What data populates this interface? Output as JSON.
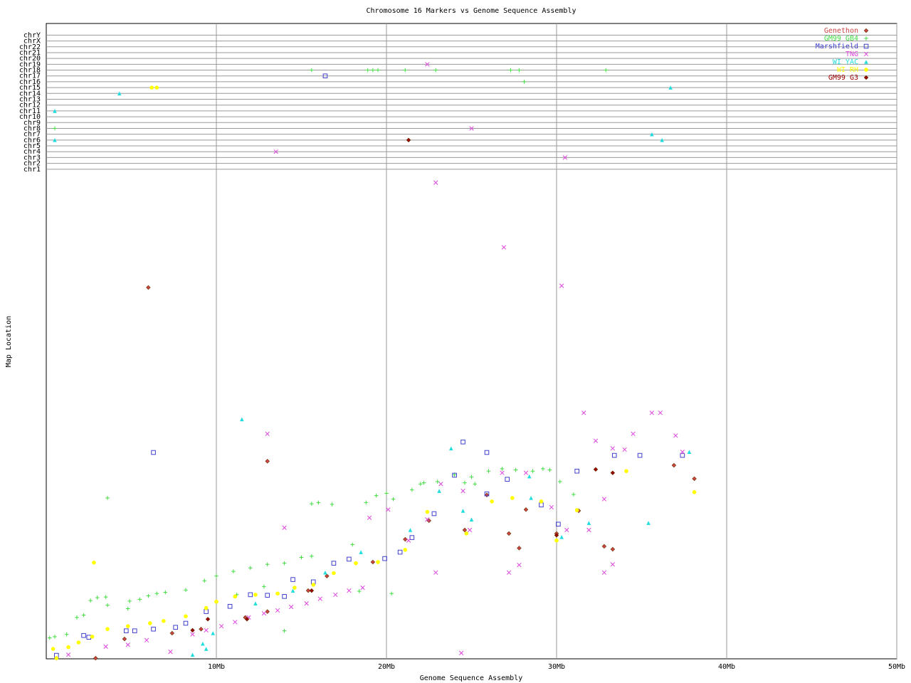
{
  "chart_data": {
    "type": "scatter",
    "title": "Chromosome 16 Markers vs Genome Sequence Assembly",
    "x_label": "Genome Sequence Assembly",
    "y_label": "Map Location",
    "xlim": [
      0,
      50
    ],
    "xticks": [
      {
        "value": 10,
        "label": "10Mb"
      },
      {
        "value": 20,
        "label": "20Mb"
      },
      {
        "value": 30,
        "label": "30Mb"
      },
      {
        "value": 40,
        "label": "40Mb"
      },
      {
        "value": 50,
        "label": "50Mb"
      }
    ],
    "ylim": [
      0,
      109
    ],
    "yticks": [
      {
        "value": 84,
        "label": "chr1"
      },
      {
        "value": 85,
        "label": "chr2"
      },
      {
        "value": 86,
        "label": "chr3"
      },
      {
        "value": 87,
        "label": "chr4"
      },
      {
        "value": 88,
        "label": "chr5"
      },
      {
        "value": 89,
        "label": "chr6"
      },
      {
        "value": 90,
        "label": "chr7"
      },
      {
        "value": 91,
        "label": "chr8"
      },
      {
        "value": 92,
        "label": "chr9"
      },
      {
        "value": 93,
        "label": "chr10"
      },
      {
        "value": 94,
        "label": "chr11"
      },
      {
        "value": 95,
        "label": "chr12"
      },
      {
        "value": 96,
        "label": "chr13"
      },
      {
        "value": 97,
        "label": "chr14"
      },
      {
        "value": 98,
        "label": "chr15"
      },
      {
        "value": 99,
        "label": "chr16"
      },
      {
        "value": 100,
        "label": "chr17"
      },
      {
        "value": 101,
        "label": "chr18"
      },
      {
        "value": 102,
        "label": "chr19"
      },
      {
        "value": 103,
        "label": "chr20"
      },
      {
        "value": 104,
        "label": "chr21"
      },
      {
        "value": 105,
        "label": "chr22"
      },
      {
        "value": 106,
        "label": "chrX"
      },
      {
        "value": 107,
        "label": "chrY"
      }
    ],
    "grid": true,
    "legend": "top-right",
    "series": [
      {
        "name": "Genethon",
        "color": "#cc4444",
        "marker": "diamond",
        "x": [
          6.0,
          13.0,
          0.6,
          2.9,
          4.6,
          7.4,
          9.1,
          11.7,
          13.0,
          15.4,
          16.5,
          19.2,
          21.1,
          22.5,
          24.6,
          25.9,
          27.2,
          27.8,
          28.2,
          30.0,
          31.3,
          32.8,
          33.3,
          36.9,
          38.1
        ],
        "values": [
          63.7,
          33.9,
          0.1,
          0.1,
          3.4,
          4.4,
          5.1,
          7.1,
          8.1,
          11.7,
          14.2,
          16.6,
          20.5,
          23.7,
          22.1,
          28.1,
          21.5,
          19.0,
          25.6,
          21.5,
          25.4,
          19.3,
          18.8,
          33.2,
          30.9
        ]
      },
      {
        "name": "GM99 GB4",
        "color": "#44dd44",
        "marker": "plus",
        "x": [
          15.6,
          18.9,
          19.2,
          19.5,
          21.1,
          22.9,
          27.3,
          27.8,
          32.9,
          28.1,
          0.5,
          0.2,
          0.5,
          1.2,
          1.8,
          2.2,
          2.6,
          3.0,
          3.5,
          3.6,
          4.8,
          4.9,
          5.5,
          6.0,
          6.5,
          7.0,
          8.2,
          3.6,
          9.3,
          10.0,
          11.0,
          12.0,
          13.0,
          14.0,
          15.0,
          15.6,
          15.6,
          16.0,
          16.8,
          18.0,
          18.8,
          19.4,
          20.0,
          20.4,
          21.5,
          22.0,
          23.0,
          24.0,
          25.0,
          26.0,
          26.8,
          27.6,
          28.6,
          29.2,
          29.6,
          30.2,
          31.0,
          14.0,
          12.8,
          11.2,
          20.3,
          18.4,
          22.2,
          24.6,
          25.2
        ],
        "values": [
          101,
          101,
          101,
          101,
          101,
          101,
          101,
          101,
          101,
          99,
          91,
          3.6,
          3.8,
          4.2,
          7.1,
          7.5,
          10.0,
          10.5,
          10.6,
          9.2,
          8.6,
          9.9,
          10.2,
          10.8,
          11.2,
          11.4,
          11.8,
          27.6,
          13.4,
          14.2,
          15.0,
          15.6,
          16.2,
          16.4,
          17.4,
          17.6,
          26.6,
          26.8,
          26.5,
          19.6,
          26.8,
          28.0,
          28.4,
          27.4,
          29.0,
          30.0,
          30.4,
          31.6,
          31.2,
          32.2,
          32.6,
          32.4,
          32.2,
          32.6,
          32.4,
          30.4,
          28.2,
          4.8,
          12.4,
          11.0,
          11.2,
          11.6,
          30.2,
          30.2,
          30.0
        ]
      },
      {
        "name": "Marshfield",
        "color": "#4040cc",
        "marker": "square",
        "x": [
          16.4,
          6.3,
          0.6,
          2.2,
          2.5,
          4.7,
          5.2,
          6.3,
          7.6,
          8.2,
          9.4,
          10.8,
          12.0,
          13.0,
          14.0,
          14.5,
          15.7,
          16.9,
          17.8,
          19.9,
          20.8,
          21.5,
          22.8,
          24.0,
          24.5,
          25.9,
          25.9,
          27.1,
          29.1,
          30.1,
          31.2,
          33.4,
          34.9,
          37.4
        ],
        "values": [
          100,
          35.4,
          0.6,
          4.0,
          3.7,
          4.8,
          4.8,
          5.1,
          5.4,
          6.1,
          8.1,
          9.0,
          11.0,
          10.9,
          10.7,
          13.6,
          13.2,
          16.4,
          17.1,
          17.2,
          18.3,
          20.8,
          24.9,
          31.5,
          37.2,
          35.4,
          28.3,
          30.8,
          26.4,
          23.1,
          32.2,
          34.9,
          34.9,
          34.9
        ]
      },
      {
        "name": "TNG",
        "color": "#dd44dd",
        "marker": "x",
        "x": [
          22.4,
          25.0,
          13.5,
          30.5,
          22.9,
          26.9,
          30.3,
          13.0,
          31.6,
          35.6,
          36.1,
          34.5,
          37.0,
          37.4,
          32.3,
          33.3,
          34.0,
          32.8,
          32.8,
          33.3,
          31.9,
          30.6,
          29.7,
          27.8,
          27.2,
          24.5,
          24.9,
          22.9,
          22.4,
          20.1,
          19.0,
          14.0,
          18.6,
          17.8,
          17.0,
          16.1,
          15.3,
          14.4,
          13.6,
          12.8,
          11.9,
          11.1,
          10.3,
          9.4,
          8.6,
          7.3,
          5.9,
          4.8,
          3.5,
          1.3,
          24.4,
          21.3,
          23.2,
          26.8,
          28.2
        ],
        "values": [
          102,
          91,
          87,
          86,
          81.7,
          70.6,
          64.0,
          38.6,
          42.2,
          42.2,
          42.2,
          38.6,
          38.3,
          35.5,
          37.4,
          36.1,
          35.9,
          27.4,
          14.8,
          16.2,
          22.1,
          22.1,
          26.0,
          16.1,
          14.8,
          28.8,
          22.1,
          14.8,
          23.9,
          25.6,
          24.2,
          22.5,
          12.2,
          11.7,
          11.0,
          10.3,
          9.5,
          8.9,
          8.3,
          7.8,
          7.1,
          6.3,
          5.6,
          4.9,
          4.2,
          1.2,
          3.2,
          2.4,
          2.1,
          0.7,
          1.0,
          20.3,
          30.0,
          31.9,
          31.9
        ]
      },
      {
        "name": "WI YAC",
        "color": "#22dddd",
        "marker": "triangle",
        "x": [
          4.3,
          36.7,
          0.5,
          0.5,
          35.6,
          36.2,
          11.5,
          23.8,
          21.4,
          24.5,
          25.0,
          28.4,
          28.5,
          30.3,
          31.9,
          35.4,
          8.6,
          9.2,
          9.4,
          9.8,
          12.3,
          14.5,
          16.4,
          18.5,
          23.1,
          37.8
        ],
        "values": [
          97,
          98,
          94,
          89,
          90,
          89,
          41.1,
          36.1,
          22.1,
          25.4,
          23.9,
          31.3,
          27.6,
          20.9,
          23.3,
          23.3,
          0.7,
          2.6,
          1.7,
          4.4,
          9.5,
          11.7,
          14.8,
          18.3,
          28.8,
          35.5
        ]
      },
      {
        "name": "WI RH",
        "color": "#ffff00",
        "marker": "circle",
        "x": [
          6.2,
          6.5,
          0.4,
          1.3,
          1.9,
          2.7,
          3.6,
          4.8,
          6.1,
          6.9,
          8.2,
          9.4,
          10.0,
          11.1,
          12.3,
          13.6,
          14.6,
          15.7,
          16.9,
          18.2,
          19.5,
          21.1,
          22.4,
          24.7,
          26.2,
          27.4,
          29.1,
          30.0,
          31.2,
          34.1,
          38.1,
          2.8,
          0.6
        ],
        "values": [
          98,
          98,
          1.7,
          2.0,
          2.8,
          3.8,
          5.1,
          5.6,
          6.1,
          6.5,
          7.3,
          8.7,
          9.8,
          10.7,
          11.0,
          11.2,
          12.2,
          12.7,
          14.7,
          16.4,
          16.6,
          18.7,
          25.2,
          21.5,
          27.0,
          27.6,
          27.0,
          20.3,
          25.5,
          32.2,
          28.6,
          16.5,
          0.1
        ]
      },
      {
        "name": "GM99 G3",
        "color": "#990000",
        "marker": "diamond",
        "x": [
          21.3,
          32.3,
          33.3,
          30.0,
          11.8,
          15.6,
          9.5,
          8.6
        ],
        "values": [
          89,
          32.5,
          31.9,
          21.2,
          6.8,
          11.7,
          6.8,
          4.9
        ]
      }
    ]
  }
}
